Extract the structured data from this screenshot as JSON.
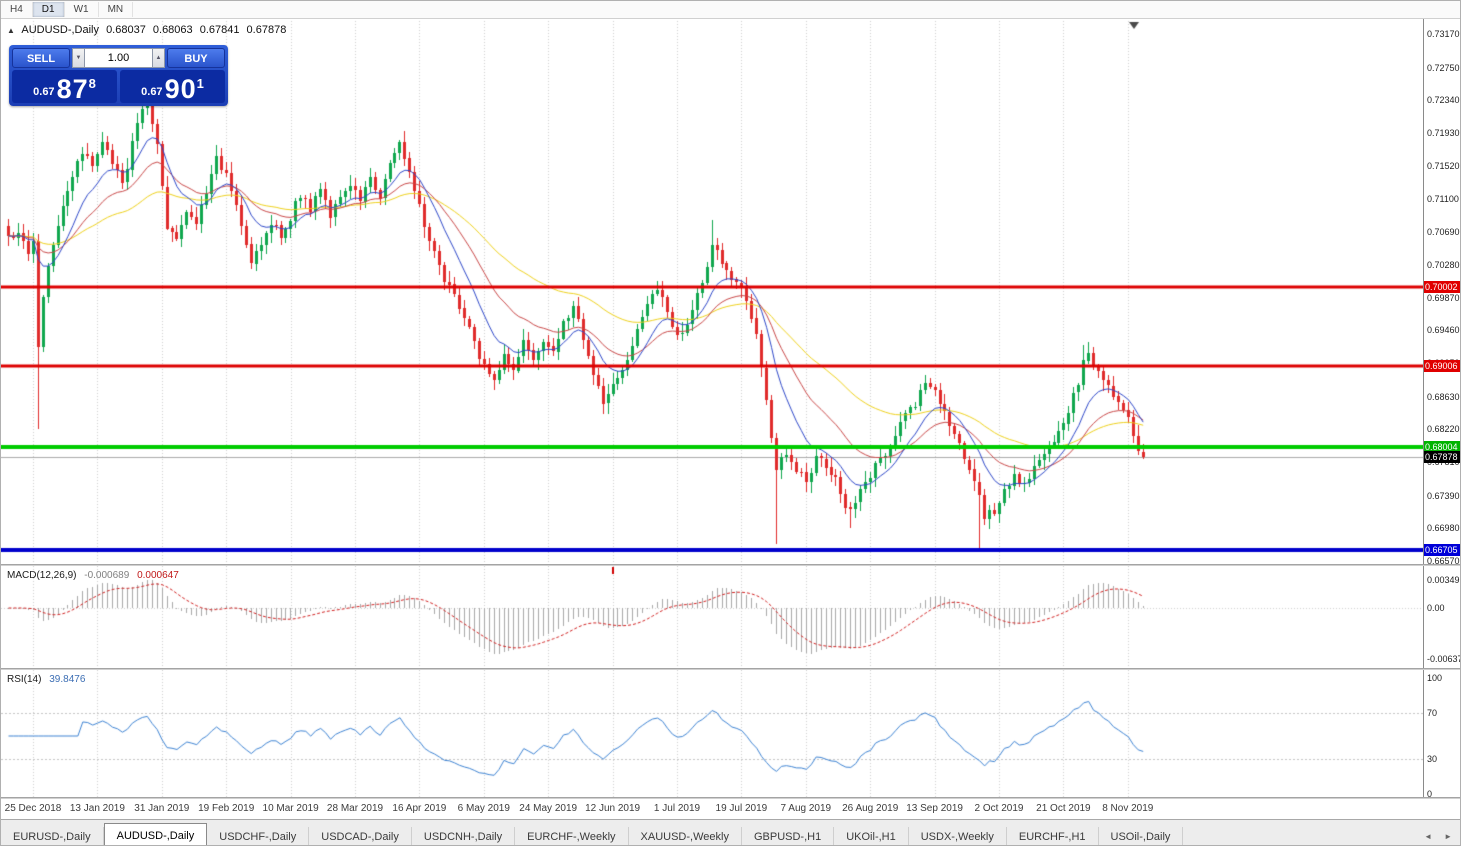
{
  "toolbar": {
    "timeframes": [
      "H4",
      "D1",
      "W1",
      "MN"
    ],
    "active": "D1"
  },
  "icons": {
    "collapse": "▲",
    "spin_down": "▼",
    "spin_up": "▲",
    "tab_prev": "◄",
    "tab_next": "►"
  },
  "symbol_header": {
    "name": "AUDUSD-,Daily",
    "open": "0.68037",
    "high": "0.68063",
    "low": "0.67841",
    "close": "0.67878"
  },
  "trade_panel": {
    "sell_label": "SELL",
    "buy_label": "BUY",
    "volume": "1.00",
    "bid_prefix": "0.67",
    "bid_big": "87",
    "bid_sup": "8",
    "ask_prefix": "0.67",
    "ask_big": "90",
    "ask_sup": "1"
  },
  "price_axis": {
    "labels": [
      "0.73170",
      "0.72750",
      "0.72340",
      "0.71930",
      "0.71520",
      "0.71100",
      "0.70690",
      "0.70280",
      "0.69870",
      "0.69460",
      "0.69050",
      "0.68630",
      "0.68220",
      "0.67810",
      "0.67390",
      "0.66980",
      "0.66570"
    ]
  },
  "hlines": [
    {
      "price": 0.70002,
      "label": "0.70002",
      "color": "#dd0000",
      "badge": "#e00000",
      "width": 3
    },
    {
      "price": 0.69006,
      "label": "0.69006",
      "color": "#dd0000",
      "badge": "#e00000",
      "width": 3
    },
    {
      "price": 0.68004,
      "label": "0.68004",
      "color": "#00cc00",
      "badge": "#00b400",
      "width": 4
    },
    {
      "price": 0.66705,
      "label": "0.66705",
      "color": "#0000cc",
      "badge": "#0000d8",
      "width": 4
    }
  ],
  "current_price": {
    "value": 0.67878,
    "label": "0.67878",
    "badge": "#000000"
  },
  "indicators": {
    "macd": {
      "name": "MACD(12,26,9)",
      "main_value": "-0.000689",
      "signal_value": "0.000647",
      "axis": [
        "0.00349",
        "0.00",
        "-0.00637"
      ]
    },
    "rsi": {
      "name": "RSI(14)",
      "value": "39.8476",
      "axis": [
        "100",
        "70",
        "30",
        "0"
      ],
      "levels": [
        70,
        30
      ]
    }
  },
  "date_axis": [
    "25 Dec 2018",
    "13 Jan 2019",
    "31 Jan 2019",
    "19 Feb 2019",
    "10 Mar 2019",
    "28 Mar 2019",
    "16 Apr 2019",
    "6 May 2019",
    "24 May 2019",
    "12 Jun 2019",
    "1 Jul 2019",
    "19 Jul 2019",
    "7 Aug 2019",
    "26 Aug 2019",
    "13 Sep 2019",
    "2 Oct 2019",
    "21 Oct 2019",
    "8 Nov 2019"
  ],
  "tabs": [
    {
      "label": "EURUSD-,Daily",
      "active": false
    },
    {
      "label": "AUDUSD-,Daily",
      "active": true
    },
    {
      "label": "USDCHF-,Daily",
      "active": false
    },
    {
      "label": "USDCAD-,Daily",
      "active": false
    },
    {
      "label": "USDCNH-,Daily",
      "active": false
    },
    {
      "label": "EURCHF-,Weekly",
      "active": false
    },
    {
      "label": "XAUUSD-,Weekly",
      "active": false
    },
    {
      "label": "GBPUSD-,H1",
      "active": false
    },
    {
      "label": "UKOil-,H1",
      "active": false
    },
    {
      "label": "USDX-,Weekly",
      "active": false
    },
    {
      "label": "EURCHF-,H1",
      "active": false
    },
    {
      "label": "USOil-,Daily",
      "active": false
    }
  ],
  "chart_data": {
    "type": "candlestick",
    "symbol": "AUDUSD",
    "timeframe": "Daily",
    "visible_range": {
      "start": "25 Dec 2018",
      "end": "15 Nov 2019"
    },
    "y_range": [
      0.66533,
      0.7337
    ],
    "current_ohlc": {
      "open": 0.68037,
      "high": 0.68063,
      "low": 0.67841,
      "close": 0.67878
    },
    "horizontal_levels": [
      0.70002,
      0.69006,
      0.68004,
      0.66705
    ],
    "current_price": 0.67878,
    "last_close": 0.67878,
    "num_candles": 230,
    "colors": {
      "bull": "#10a74e",
      "bear": "#e02b2b",
      "grid": "#cfcfcf",
      "current_line": "#aaaaaa",
      "macd_hist": "#a9a9a9",
      "macd_signal": "#d02020",
      "rsi_line": "#3c82d2",
      "level_line": "#c4c4c4"
    },
    "moving_averages": [
      {
        "period": 50,
        "color": "#edd01a"
      },
      {
        "period": 22,
        "color": "#c84646"
      },
      {
        "period": 10,
        "color": "#2c46c8"
      }
    ],
    "anchors": [
      [
        0,
        0.706
      ],
      [
        2,
        0.7072
      ],
      [
        4,
        0.704
      ],
      [
        5,
        0.7062
      ],
      [
        6,
        0.693
      ],
      [
        7,
        0.6985
      ],
      [
        9,
        0.7058
      ],
      [
        11,
        0.7096
      ],
      [
        13,
        0.7138
      ],
      [
        15,
        0.7168
      ],
      [
        17,
        0.7148
      ],
      [
        19,
        0.7182
      ],
      [
        21,
        0.7158
      ],
      [
        23,
        0.7128
      ],
      [
        25,
        0.7178
      ],
      [
        27,
        0.7225
      ],
      [
        28,
        0.7232
      ],
      [
        30,
        0.7178
      ],
      [
        32,
        0.7078
      ],
      [
        34,
        0.7062
      ],
      [
        36,
        0.7094
      ],
      [
        38,
        0.7082
      ],
      [
        40,
        0.7118
      ],
      [
        42,
        0.7165
      ],
      [
        44,
        0.7138
      ],
      [
        46,
        0.7098
      ],
      [
        48,
        0.7052
      ],
      [
        49,
        0.7032
      ],
      [
        51,
        0.7058
      ],
      [
        53,
        0.7082
      ],
      [
        55,
        0.7064
      ],
      [
        57,
        0.7088
      ],
      [
        59,
        0.7118
      ],
      [
        61,
        0.7098
      ],
      [
        63,
        0.7122
      ],
      [
        65,
        0.7092
      ],
      [
        67,
        0.7108
      ],
      [
        69,
        0.7128
      ],
      [
        71,
        0.7104
      ],
      [
        73,
        0.7136
      ],
      [
        75,
        0.7114
      ],
      [
        77,
        0.7155
      ],
      [
        79,
        0.7182
      ],
      [
        81,
        0.7142
      ],
      [
        83,
        0.7098
      ],
      [
        85,
        0.7058
      ],
      [
        87,
        0.7022
      ],
      [
        89,
        0.7
      ],
      [
        91,
        0.6974
      ],
      [
        93,
        0.6946
      ],
      [
        95,
        0.6912
      ],
      [
        98,
        0.6886
      ],
      [
        100,
        0.6918
      ],
      [
        102,
        0.6898
      ],
      [
        104,
        0.6932
      ],
      [
        106,
        0.691
      ],
      [
        108,
        0.6934
      ],
      [
        110,
        0.6918
      ],
      [
        112,
        0.6952
      ],
      [
        114,
        0.6978
      ],
      [
        116,
        0.6932
      ],
      [
        118,
        0.6892
      ],
      [
        120,
        0.6856
      ],
      [
        122,
        0.6874
      ],
      [
        124,
        0.6898
      ],
      [
        126,
        0.6928
      ],
      [
        128,
        0.6958
      ],
      [
        130,
        0.6988
      ],
      [
        131,
        0.7
      ],
      [
        133,
        0.6964
      ],
      [
        135,
        0.6936
      ],
      [
        137,
        0.6958
      ],
      [
        139,
        0.6988
      ],
      [
        141,
        0.7028
      ],
      [
        142,
        0.7058
      ],
      [
        143,
        0.7042
      ],
      [
        145,
        0.7018
      ],
      [
        147,
        0.7
      ],
      [
        149,
        0.6988
      ],
      [
        151,
        0.6938
      ],
      [
        153,
        0.6858
      ],
      [
        155,
        0.6775
      ],
      [
        157,
        0.6795
      ],
      [
        159,
        0.6772
      ],
      [
        161,
        0.6756
      ],
      [
        163,
        0.6788
      ],
      [
        165,
        0.6774
      ],
      [
        167,
        0.6758
      ],
      [
        169,
        0.6722
      ],
      [
        171,
        0.6732
      ],
      [
        173,
        0.6758
      ],
      [
        175,
        0.6774
      ],
      [
        177,
        0.679
      ],
      [
        179,
        0.6812
      ],
      [
        181,
        0.684
      ],
      [
        183,
        0.6856
      ],
      [
        185,
        0.6876
      ],
      [
        187,
        0.6868
      ],
      [
        189,
        0.684
      ],
      [
        191,
        0.6814
      ],
      [
        193,
        0.6788
      ],
      [
        195,
        0.6754
      ],
      [
        197,
        0.6716
      ],
      [
        199,
        0.6722
      ],
      [
        201,
        0.6744
      ],
      [
        203,
        0.6764
      ],
      [
        205,
        0.675
      ],
      [
        207,
        0.6774
      ],
      [
        209,
        0.679
      ],
      [
        211,
        0.681
      ],
      [
        213,
        0.683
      ],
      [
        215,
        0.6862
      ],
      [
        217,
        0.6904
      ],
      [
        218,
        0.6914
      ],
      [
        219,
        0.6898
      ],
      [
        221,
        0.688
      ],
      [
        223,
        0.6864
      ],
      [
        225,
        0.685
      ],
      [
        226,
        0.684
      ],
      [
        227,
        0.6816
      ],
      [
        228,
        0.6796
      ],
      [
        229,
        0.67878
      ]
    ],
    "spikes_low": [
      [
        6,
        0.6822
      ],
      [
        155,
        0.6678
      ],
      [
        170,
        0.6698
      ],
      [
        196,
        0.6671
      ]
    ],
    "spikes_high": [
      [
        28,
        0.7238
      ],
      [
        142,
        0.7084
      ],
      [
        217,
        0.6928
      ]
    ],
    "macd_red_tick_index": 122
  }
}
